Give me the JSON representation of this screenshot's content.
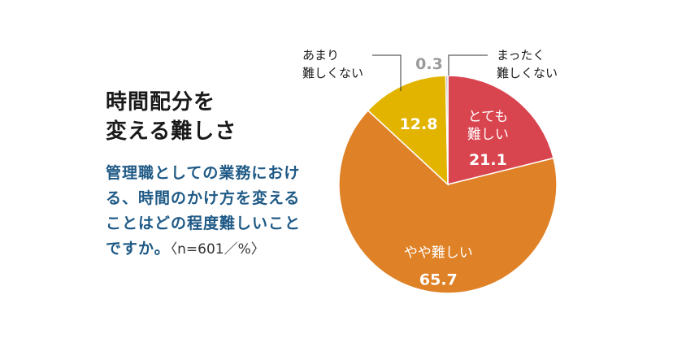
{
  "title_lines": [
    "時間配分を",
    "変える難しさ"
  ],
  "question": {
    "text": "管理職としての業務における、時間のかけ方を変えることはどの程度難しいことですか。",
    "note": "〈n=601／%〉"
  },
  "colors": {
    "very_difficult": "#d9454f",
    "somewhat_difficult": "#df8126",
    "not_very_difficult": "#e2b400",
    "not_at_all_difficult": "#a8a8a8",
    "question": "#1f5a86"
  },
  "chart_data": {
    "type": "pie",
    "unit": "%",
    "n": 601,
    "slices": [
      {
        "label_lines": [
          "とても",
          "難しい"
        ],
        "value": 21.1,
        "color": "#d9454f"
      },
      {
        "label_lines": [
          "やや難しい"
        ],
        "value": 65.7,
        "color": "#df8126"
      },
      {
        "label_lines": [
          "あまり",
          "難しくない"
        ],
        "value": 12.8,
        "color": "#e2b400"
      },
      {
        "label_lines": [
          "まったく",
          "難しくない"
        ],
        "value": 0.3,
        "color": "#a8a8a8"
      }
    ]
  }
}
